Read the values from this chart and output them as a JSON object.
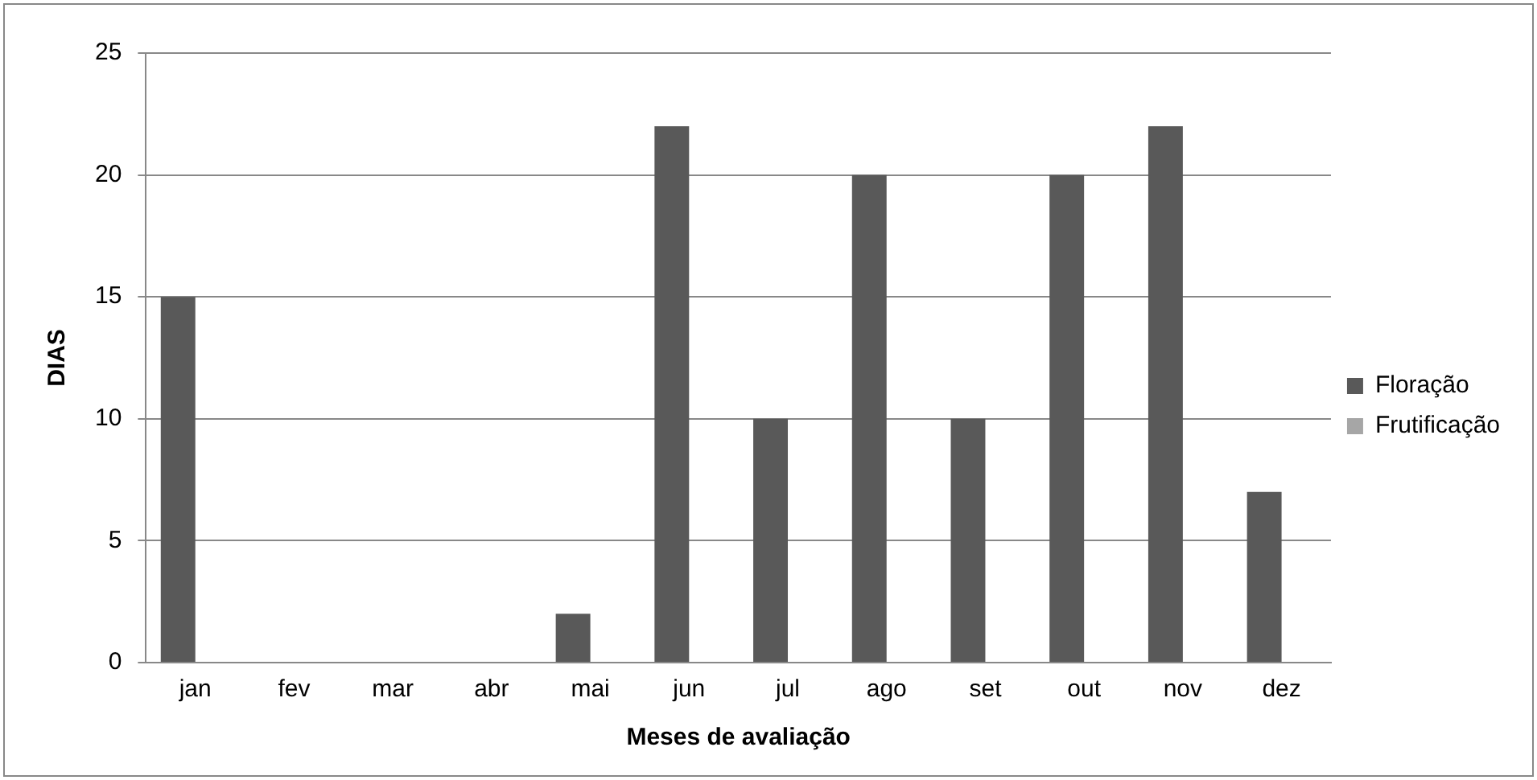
{
  "chart_data": {
    "type": "bar",
    "xlabel": "Meses de avaliação",
    "ylabel": "DIAS",
    "categories": [
      "jan",
      "fev",
      "mar",
      "abr",
      "mai",
      "jun",
      "jul",
      "ago",
      "set",
      "out",
      "nov",
      "dez"
    ],
    "series": [
      {
        "name": "Floração",
        "color": "#595959",
        "values": [
          15,
          0,
          0,
          0,
          2,
          22,
          10,
          20,
          10,
          20,
          22,
          7
        ]
      },
      {
        "name": "Frutificação",
        "color": "#a6a6a6",
        "values": [
          0,
          0,
          0,
          0,
          0,
          0,
          0,
          0,
          0,
          0,
          0,
          0
        ]
      }
    ],
    "ylim": [
      0,
      25
    ],
    "yticks": [
      0,
      5,
      10,
      15,
      20,
      25
    ],
    "grid": "y",
    "legend": "right"
  }
}
